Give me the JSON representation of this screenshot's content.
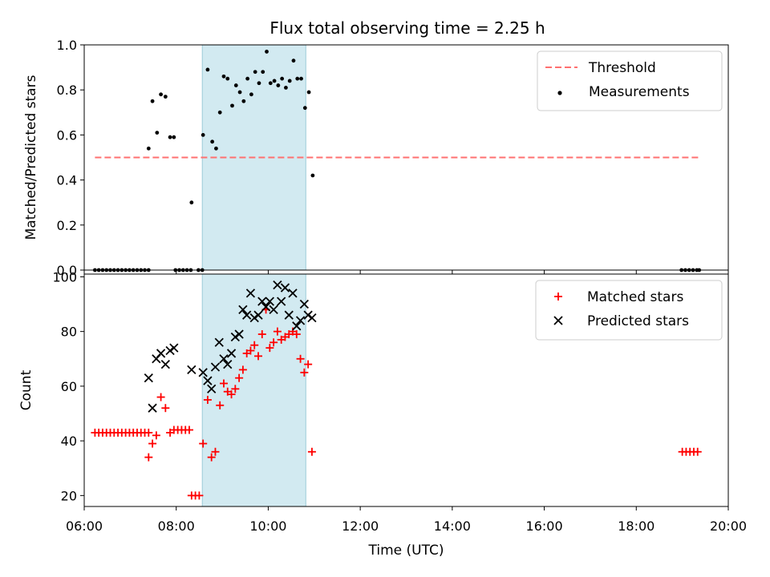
{
  "title": "Flux total observing time = 2.25 h",
  "chart_data": [
    {
      "type": "scatter",
      "title": "Flux total observing time = 2.25 h",
      "xlabel": "",
      "ylabel": "Matched/Predicted stars",
      "xlim": [
        "06:00",
        "20:00"
      ],
      "ylim": [
        0,
        1.0
      ],
      "yticks": [
        "0.0",
        "0.2",
        "0.4",
        "0.6",
        "0.8",
        "1.0"
      ],
      "legend_position": "top-right",
      "highlight_span": [
        "08:34",
        "10:49"
      ],
      "highlight_color": "#add8e6",
      "threshold": {
        "name": "Threshold",
        "value": 0.5,
        "x_range": [
          "06:14",
          "19:22"
        ],
        "color": "#ff7070",
        "style": "dashed"
      },
      "series": [
        {
          "name": "Measurements",
          "color": "#000000",
          "marker": "dot",
          "points": [
            [
              "06:14",
              0
            ],
            [
              "06:19",
              0
            ],
            [
              "06:24",
              0
            ],
            [
              "06:29",
              0
            ],
            [
              "06:34",
              0
            ],
            [
              "06:39",
              0
            ],
            [
              "06:44",
              0
            ],
            [
              "06:49",
              0
            ],
            [
              "06:54",
              0
            ],
            [
              "06:59",
              0
            ],
            [
              "07:04",
              0
            ],
            [
              "07:09",
              0
            ],
            [
              "07:14",
              0
            ],
            [
              "07:19",
              0
            ],
            [
              "07:24",
              0
            ],
            [
              "07:24",
              0.54
            ],
            [
              "07:29",
              0.75
            ],
            [
              "07:35",
              0.61
            ],
            [
              "07:40",
              0.78
            ],
            [
              "07:46",
              0.77
            ],
            [
              "07:52",
              0.59
            ],
            [
              "07:57",
              0.59
            ],
            [
              "07:59",
              0
            ],
            [
              "08:04",
              0
            ],
            [
              "08:09",
              0
            ],
            [
              "08:14",
              0
            ],
            [
              "08:19",
              0
            ],
            [
              "08:29",
              0
            ],
            [
              "08:34",
              0
            ],
            [
              "08:20",
              0.3
            ],
            [
              "08:35",
              0.6
            ],
            [
              "08:41",
              0.89
            ],
            [
              "08:47",
              0.57
            ],
            [
              "08:52",
              0.54
            ],
            [
              "08:57",
              0.7
            ],
            [
              "09:02",
              0.86
            ],
            [
              "09:07",
              0.85
            ],
            [
              "09:13",
              0.73
            ],
            [
              "09:18",
              0.82
            ],
            [
              "09:23",
              0.79
            ],
            [
              "09:28",
              0.75
            ],
            [
              "09:33",
              0.85
            ],
            [
              "09:38",
              0.78
            ],
            [
              "09:43",
              0.88
            ],
            [
              "09:48",
              0.83
            ],
            [
              "09:53",
              0.88
            ],
            [
              "09:58",
              0.97
            ],
            [
              "10:03",
              0.83
            ],
            [
              "10:08",
              0.84
            ],
            [
              "10:13",
              0.82
            ],
            [
              "10:18",
              0.85
            ],
            [
              "10:23",
              0.81
            ],
            [
              "10:28",
              0.84
            ],
            [
              "10:33",
              0.93
            ],
            [
              "10:38",
              0.85
            ],
            [
              "10:43",
              0.85
            ],
            [
              "10:48",
              0.72
            ],
            [
              "10:53",
              0.79
            ],
            [
              "10:58",
              0.42
            ],
            [
              "18:59",
              0
            ],
            [
              "19:04",
              0
            ],
            [
              "19:09",
              0
            ],
            [
              "19:14",
              0
            ],
            [
              "19:19",
              0
            ],
            [
              "19:22",
              0
            ]
          ]
        }
      ]
    },
    {
      "type": "scatter",
      "xlabel": "Time (UTC)",
      "ylabel": "Count",
      "xlim": [
        "06:00",
        "20:00"
      ],
      "ylim": [
        16,
        101
      ],
      "xticks": [
        "06:00",
        "08:00",
        "10:00",
        "12:00",
        "14:00",
        "16:00",
        "18:00",
        "20:00"
      ],
      "yticks": [
        "20",
        "40",
        "60",
        "80",
        "100"
      ],
      "legend_position": "top-right",
      "highlight_span": [
        "08:34",
        "10:49"
      ],
      "highlight_color": "#add8e6",
      "series": [
        {
          "name": "Matched stars",
          "color": "#ff0000",
          "marker": "plus",
          "points": [
            [
              "06:14",
              43
            ],
            [
              "06:19",
              43
            ],
            [
              "06:24",
              43
            ],
            [
              "06:29",
              43
            ],
            [
              "06:34",
              43
            ],
            [
              "06:39",
              43
            ],
            [
              "06:44",
              43
            ],
            [
              "06:49",
              43
            ],
            [
              "06:54",
              43
            ],
            [
              "06:59",
              43
            ],
            [
              "07:04",
              43
            ],
            [
              "07:09",
              43
            ],
            [
              "07:14",
              43
            ],
            [
              "07:19",
              43
            ],
            [
              "07:24",
              43
            ],
            [
              "07:24",
              34
            ],
            [
              "07:29",
              39
            ],
            [
              "07:34",
              42
            ],
            [
              "07:40",
              56
            ],
            [
              "07:46",
              52
            ],
            [
              "07:52",
              43
            ],
            [
              "07:57",
              44
            ],
            [
              "08:02",
              44
            ],
            [
              "08:07",
              44
            ],
            [
              "08:12",
              44
            ],
            [
              "08:17",
              44
            ],
            [
              "08:20",
              20
            ],
            [
              "08:25",
              20
            ],
            [
              "08:30",
              20
            ],
            [
              "08:35",
              39
            ],
            [
              "08:41",
              55
            ],
            [
              "08:46",
              34
            ],
            [
              "08:51",
              36
            ],
            [
              "08:57",
              53
            ],
            [
              "09:02",
              61
            ],
            [
              "09:07",
              58
            ],
            [
              "09:12",
              57
            ],
            [
              "09:17",
              59
            ],
            [
              "09:22",
              63
            ],
            [
              "09:27",
              66
            ],
            [
              "09:32",
              72
            ],
            [
              "09:37",
              73
            ],
            [
              "09:42",
              75
            ],
            [
              "09:47",
              71
            ],
            [
              "09:52",
              79
            ],
            [
              "09:57",
              88
            ],
            [
              "10:02",
              74
            ],
            [
              "10:07",
              76
            ],
            [
              "10:12",
              80
            ],
            [
              "10:17",
              77
            ],
            [
              "10:22",
              78
            ],
            [
              "10:27",
              79
            ],
            [
              "10:32",
              80
            ],
            [
              "10:37",
              79
            ],
            [
              "10:42",
              70
            ],
            [
              "10:47",
              65
            ],
            [
              "10:52",
              68
            ],
            [
              "10:57",
              36
            ],
            [
              "19:00",
              36
            ],
            [
              "19:05",
              36
            ],
            [
              "19:10",
              36
            ],
            [
              "19:15",
              36
            ],
            [
              "19:20",
              36
            ]
          ]
        },
        {
          "name": "Predicted stars",
          "color": "#000000",
          "marker": "x",
          "points": [
            [
              "07:24",
              63
            ],
            [
              "07:29",
              52
            ],
            [
              "07:34",
              70
            ],
            [
              "07:40",
              72
            ],
            [
              "07:46",
              68
            ],
            [
              "07:52",
              73
            ],
            [
              "07:57",
              74
            ],
            [
              "08:20",
              66
            ],
            [
              "08:35",
              65
            ],
            [
              "08:41",
              62
            ],
            [
              "08:46",
              59
            ],
            [
              "08:51",
              67
            ],
            [
              "08:56",
              76
            ],
            [
              "09:02",
              70
            ],
            [
              "09:07",
              68
            ],
            [
              "09:12",
              72
            ],
            [
              "09:17",
              78
            ],
            [
              "09:22",
              79
            ],
            [
              "09:27",
              88
            ],
            [
              "09:32",
              86
            ],
            [
              "09:37",
              94
            ],
            [
              "09:42",
              85
            ],
            [
              "09:47",
              86
            ],
            [
              "09:52",
              91
            ],
            [
              "09:57",
              89
            ],
            [
              "10:02",
              91
            ],
            [
              "10:07",
              88
            ],
            [
              "10:12",
              97
            ],
            [
              "10:17",
              91
            ],
            [
              "10:22",
              96
            ],
            [
              "10:27",
              86
            ],
            [
              "10:32",
              94
            ],
            [
              "10:37",
              82
            ],
            [
              "10:42",
              84
            ],
            [
              "10:47",
              90
            ],
            [
              "10:52",
              86
            ],
            [
              "10:57",
              85
            ]
          ]
        }
      ]
    }
  ]
}
